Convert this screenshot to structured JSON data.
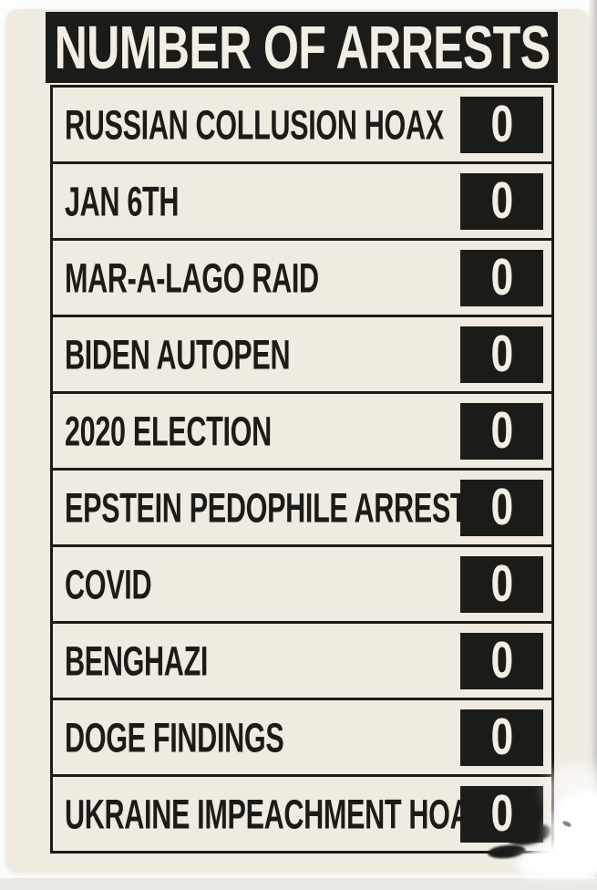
{
  "sign": {
    "title": "NUMBER OF ARRESTS",
    "rows": [
      {
        "label": "RUSSIAN COLLUSION HOAX",
        "value": "0"
      },
      {
        "label": "JAN 6TH",
        "value": "0"
      },
      {
        "label": "MAR-A-LAGO RAID",
        "value": "0"
      },
      {
        "label": "BIDEN AUTOPEN",
        "value": "0"
      },
      {
        "label": "2020 ELECTION",
        "value": "0"
      },
      {
        "label": "EPSTEIN PEDOPHILE ARRESTS",
        "value": "0"
      },
      {
        "label": "COVID",
        "value": "0"
      },
      {
        "label": "BENGHAZI",
        "value": "0"
      },
      {
        "label": "DOGE FINDINGS",
        "value": "0"
      },
      {
        "label": "UKRAINE IMPEACHMENT HOAX",
        "value": "0"
      }
    ],
    "colors": {
      "ink": "#1b1b17",
      "card_bg": "#f0ebe1",
      "light_text": "#f3eee4",
      "page_bg": "#fdfdfc"
    }
  },
  "chart_data": {
    "type": "table",
    "title": "NUMBER OF ARRESTS",
    "categories": [
      "RUSSIAN COLLUSION HOAX",
      "JAN 6TH",
      "MAR-A-LAGO RAID",
      "BIDEN AUTOPEN",
      "2020 ELECTION",
      "EPSTEIN PEDOPHILE ARRESTS",
      "COVID",
      "BENGHAZI",
      "DOGE FINDINGS",
      "UKRAINE IMPEACHMENT HOAX"
    ],
    "values": [
      0,
      0,
      0,
      0,
      0,
      0,
      0,
      0,
      0,
      0
    ],
    "xlabel": "",
    "ylabel": "Number of arrests"
  }
}
